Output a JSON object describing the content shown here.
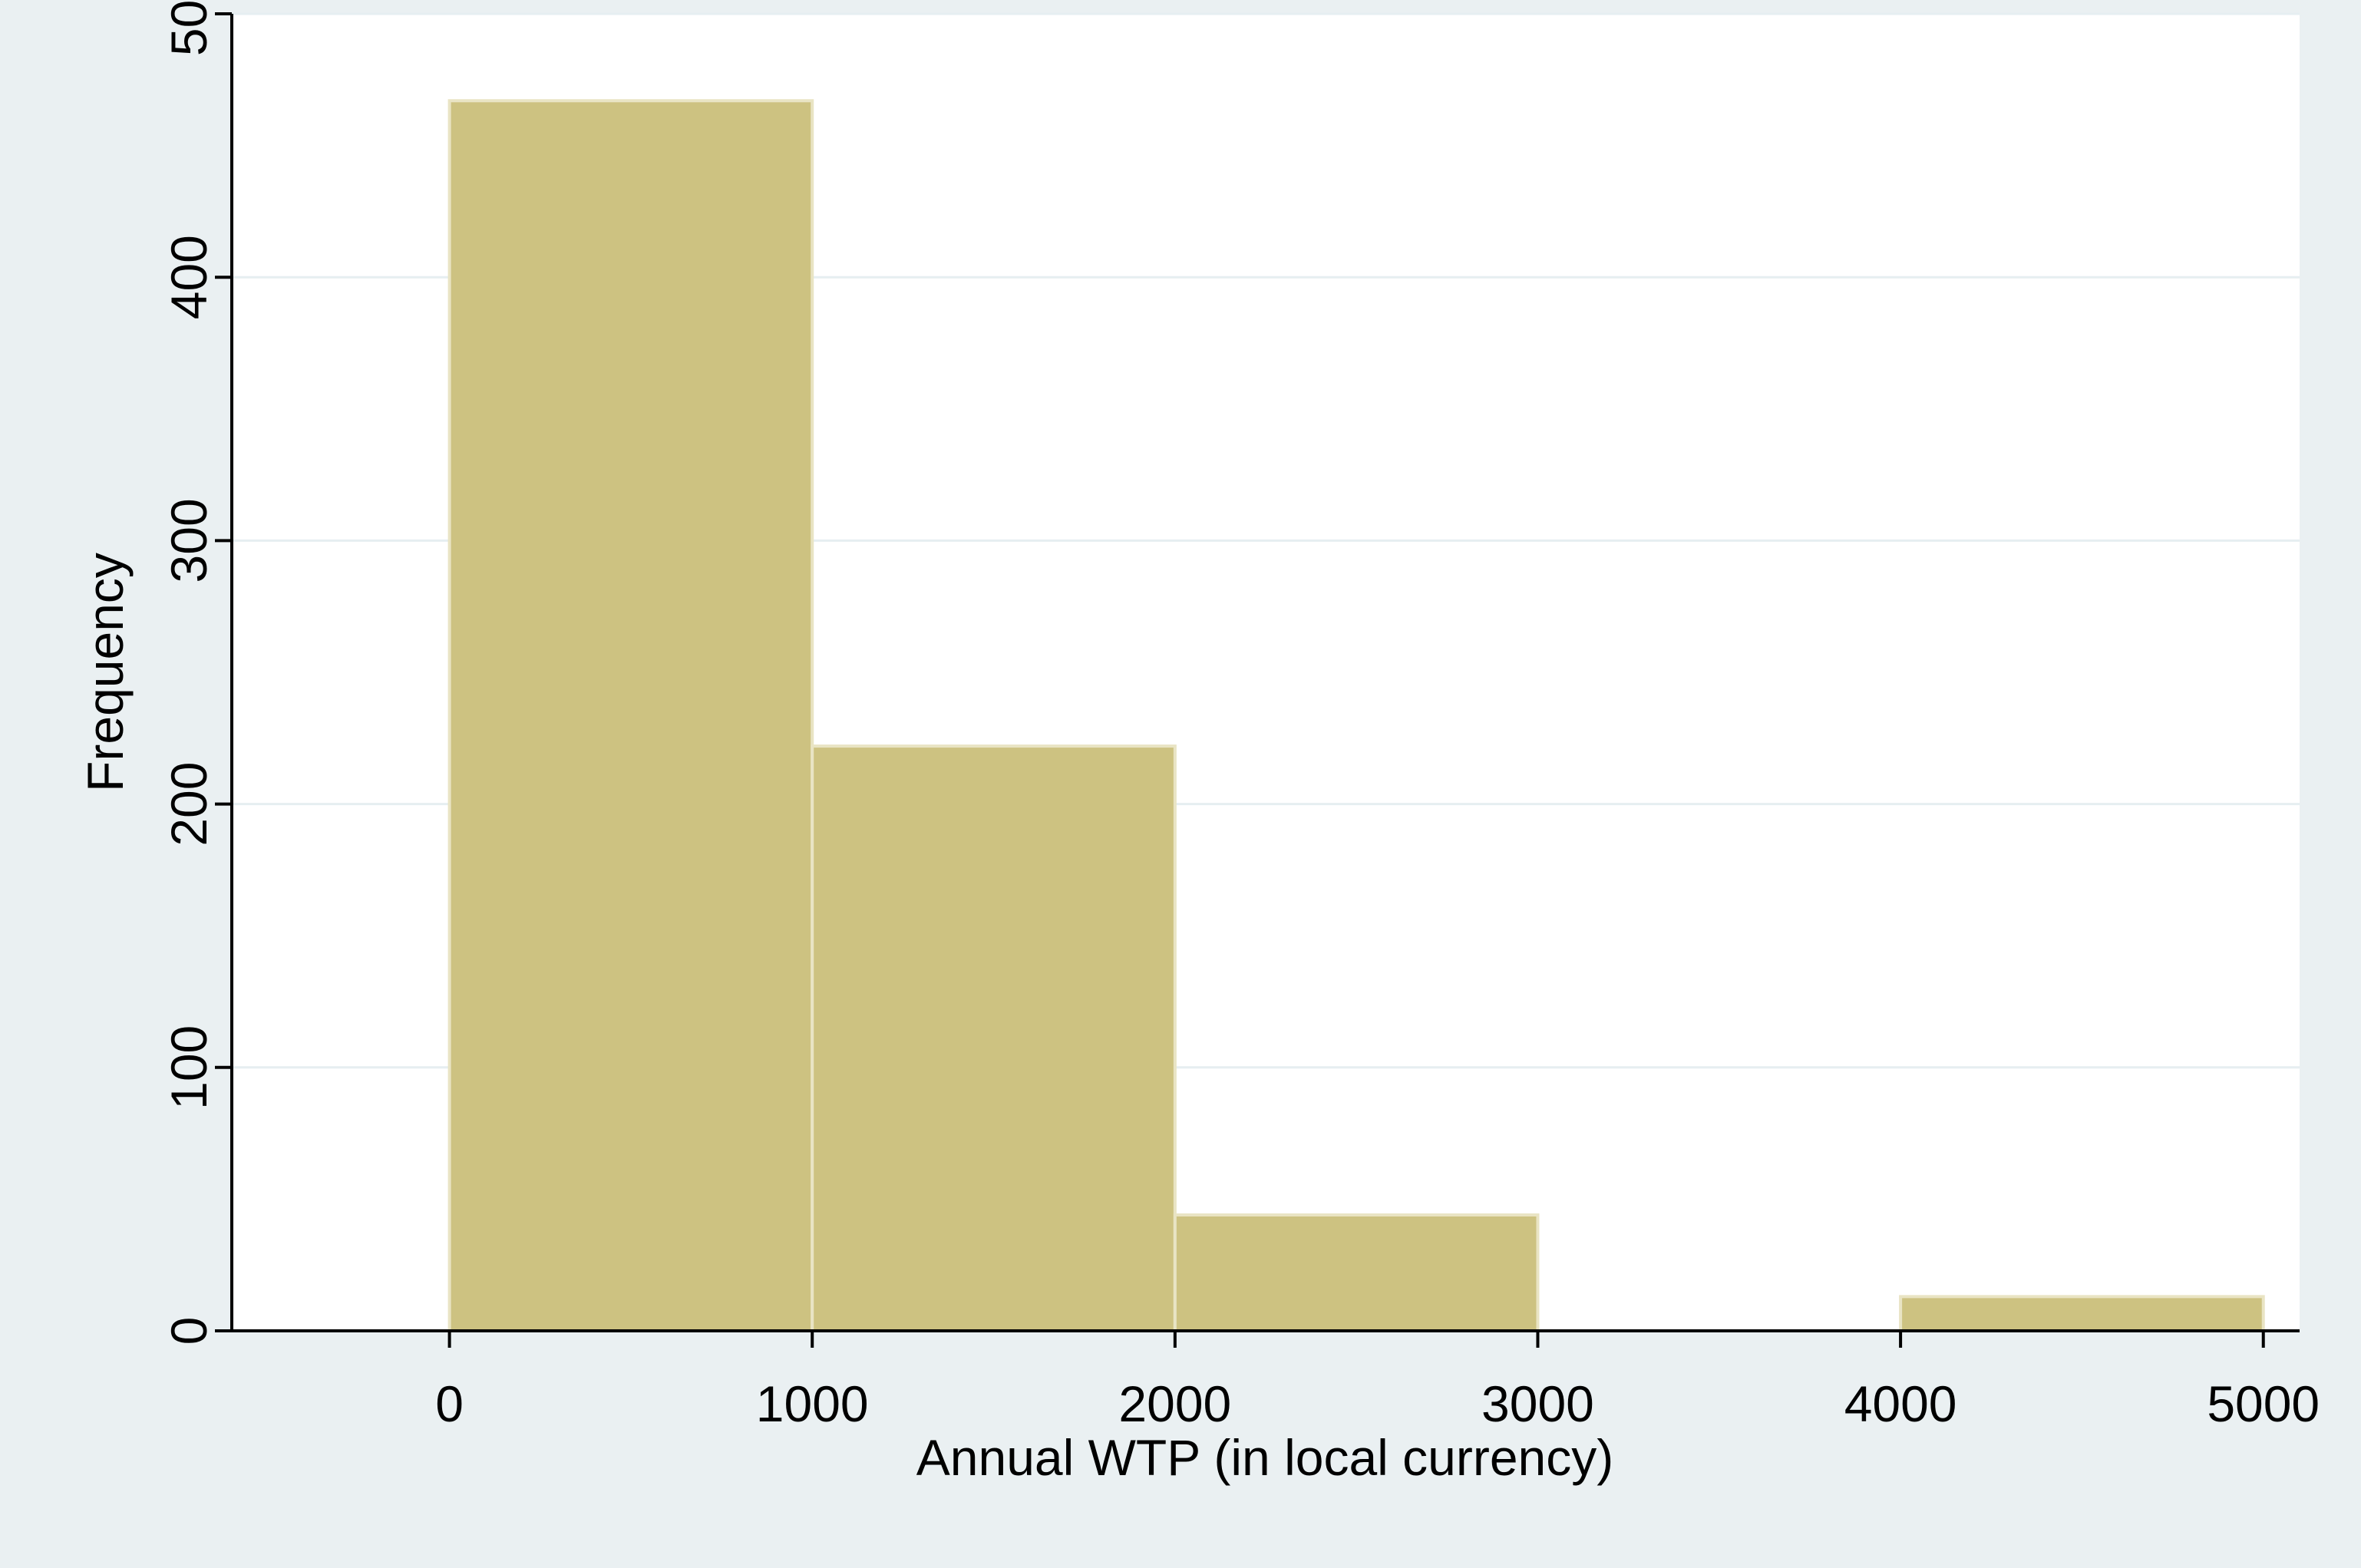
{
  "chart_data": {
    "type": "bar",
    "histogram": true,
    "bins": [
      {
        "start": 0,
        "end": 1000,
        "value": 467
      },
      {
        "start": 1000,
        "end": 2000,
        "value": 222
      },
      {
        "start": 2000,
        "end": 3000,
        "value": 44
      },
      {
        "start": 3000,
        "end": 4000,
        "value": 0
      },
      {
        "start": 4000,
        "end": 5000,
        "value": 13
      }
    ],
    "xlabel": "Annual WTP (in local currency)",
    "ylabel": "Frequency",
    "xlim": [
      -600,
      5100
    ],
    "ylim": [
      0,
      500
    ],
    "x_ticks": [
      0,
      1000,
      2000,
      3000,
      4000,
      5000
    ],
    "y_ticks": [
      0,
      100,
      200,
      300,
      400,
      500
    ],
    "grid": true,
    "colors": {
      "bar": "#cdc281",
      "bar_outline": "#e9e4c4",
      "plot_background": "#ffffff",
      "outer_background": "#eaf0f2",
      "grid": "#e6eef1"
    }
  }
}
